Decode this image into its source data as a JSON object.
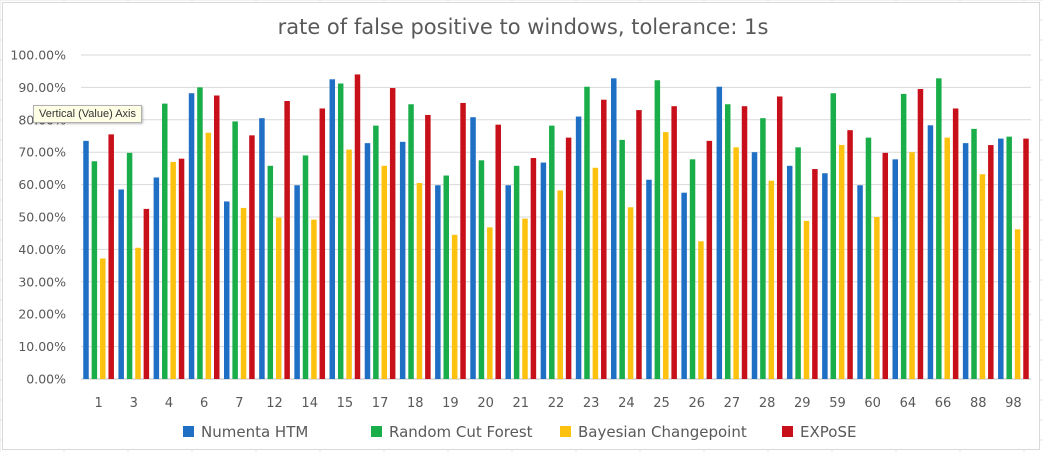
{
  "chart_data": {
    "type": "bar",
    "title": "rate of false positive to windows, tolerance: 1s",
    "categories": [
      "1",
      "3",
      "4",
      "6",
      "7",
      "12",
      "14",
      "15",
      "17",
      "18",
      "19",
      "20",
      "21",
      "22",
      "23",
      "24",
      "25",
      "26",
      "27",
      "28",
      "29",
      "59",
      "60",
      "64",
      "66",
      "88",
      "98"
    ],
    "y_ticks": [
      "0.00%",
      "10.00%",
      "20.00%",
      "30.00%",
      "40.00%",
      "50.00%",
      "60.00%",
      "70.00%",
      "80.00%",
      "90.00%",
      "100.00%"
    ],
    "ylim": [
      0,
      100
    ],
    "y_unit": "%",
    "grid": true,
    "legend_position": "bottom",
    "series": [
      {
        "name": "Numenta HTM",
        "color": "#1f6fc5",
        "values": [
          73.5,
          58.5,
          62.2,
          88.2,
          54.8,
          80.5,
          59.8,
          92.5,
          72.8,
          73.2,
          59.8,
          80.8,
          59.8,
          66.8,
          81.0,
          92.8,
          61.5,
          57.5,
          90.2,
          70.0,
          65.8,
          63.5,
          59.8,
          67.8,
          78.3,
          72.8,
          74.2
        ]
      },
      {
        "name": "Random Cut Forest",
        "color": "#1aae4a",
        "values": [
          67.2,
          69.8,
          85.0,
          90.0,
          79.5,
          65.8,
          69.0,
          91.2,
          78.2,
          84.8,
          62.8,
          67.5,
          65.8,
          78.2,
          90.2,
          73.8,
          92.2,
          67.8,
          84.8,
          80.5,
          71.5,
          88.2,
          74.5,
          88.0,
          92.8,
          77.2,
          74.8
        ]
      },
      {
        "name": "Bayesian Changepoint",
        "color": "#fdc20f",
        "values": [
          37.2,
          40.5,
          67.0,
          76.0,
          52.8,
          49.8,
          49.2,
          70.8,
          65.8,
          60.5,
          44.5,
          46.8,
          49.5,
          58.2,
          65.2,
          53.0,
          76.2,
          42.5,
          71.5,
          61.2,
          48.8,
          72.2,
          50.0,
          70.0,
          74.5,
          63.2,
          46.2
        ]
      },
      {
        "name": "EXPoSE",
        "color": "#c8101a",
        "values": [
          75.5,
          52.5,
          68.0,
          87.5,
          75.2,
          85.8,
          83.5,
          94.0,
          89.8,
          81.5,
          85.2,
          78.5,
          68.2,
          74.5,
          86.2,
          83.0,
          84.2,
          73.5,
          84.2,
          87.2,
          64.8,
          76.8,
          69.8,
          89.5,
          83.5,
          72.2,
          74.2
        ]
      }
    ]
  },
  "tooltip": {
    "text": "Vertical (Value) Axis"
  }
}
